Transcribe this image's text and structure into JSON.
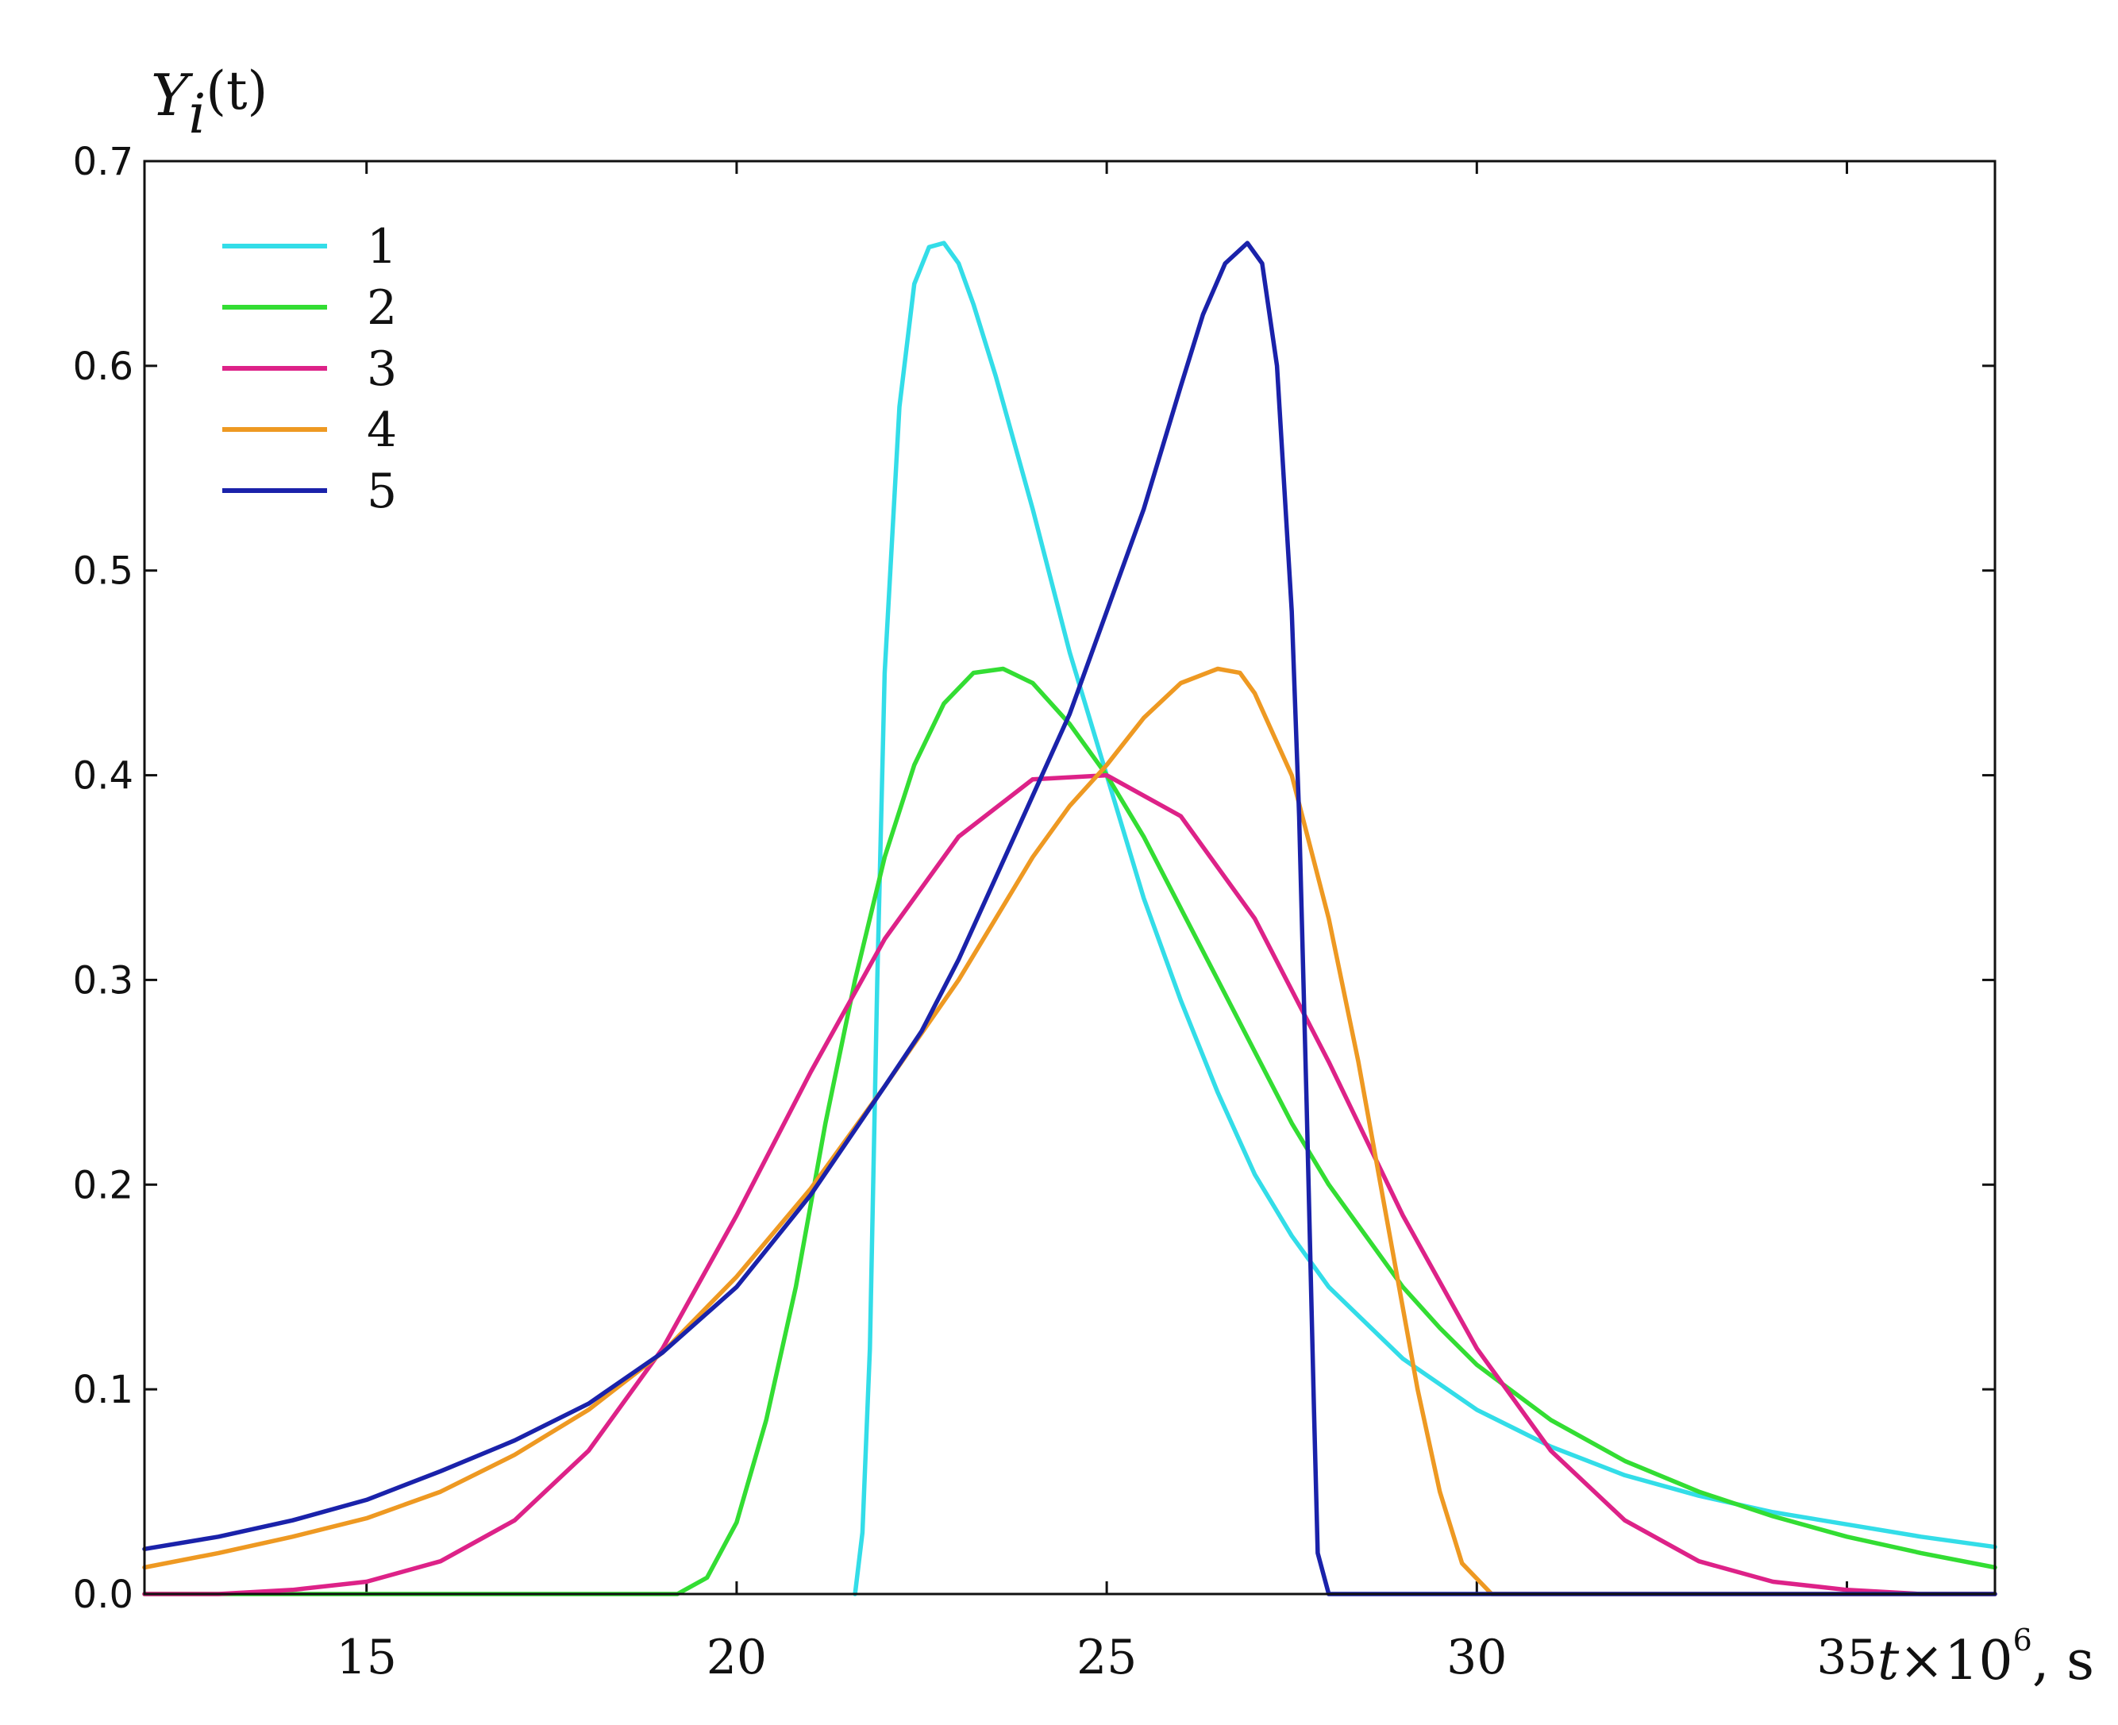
{
  "chart_data": {
    "type": "line",
    "ylabel": {
      "main": "Y",
      "sub": "i",
      "paren": "(t)"
    },
    "xlabel": {
      "var": "t",
      "mult": "×10",
      "exp": "6",
      "unit": ", s"
    },
    "xlim": [
      12,
      37
    ],
    "ylim": [
      0,
      0.7
    ],
    "x_ticks": [
      15,
      20,
      25,
      30,
      35
    ],
    "x_tick_labels": [
      "15",
      "20",
      "25",
      "30",
      "35"
    ],
    "y_ticks": [
      0.0,
      0.1,
      0.2,
      0.3,
      0.4,
      0.5,
      0.6,
      0.7
    ],
    "y_tick_labels": [
      "0.0",
      "0.1",
      "0.2",
      "0.3",
      "0.4",
      "0.5",
      "0.6",
      "0.7"
    ],
    "grid": false,
    "legend": {
      "position": "top-left"
    },
    "series": [
      {
        "name": "1",
        "color": "#33dde8",
        "x": [
          21.6,
          21.7,
          21.8,
          21.9,
          22.0,
          22.2,
          22.4,
          22.6,
          22.8,
          23.0,
          23.2,
          23.5,
          24.0,
          24.5,
          25.0,
          25.5,
          26.0,
          26.5,
          27.0,
          27.5,
          28.0,
          29.0,
          30.0,
          31.0,
          32.0,
          33.0,
          34.0,
          35.0,
          36.0,
          37.0
        ],
        "y": [
          0.0,
          0.03,
          0.12,
          0.3,
          0.45,
          0.58,
          0.64,
          0.658,
          0.66,
          0.65,
          0.63,
          0.595,
          0.53,
          0.46,
          0.4,
          0.34,
          0.29,
          0.245,
          0.205,
          0.175,
          0.15,
          0.115,
          0.09,
          0.072,
          0.058,
          0.048,
          0.04,
          0.034,
          0.028,
          0.023
        ]
      },
      {
        "name": "2",
        "color": "#33dd33",
        "x": [
          12,
          19.2,
          19.6,
          20.0,
          20.4,
          20.8,
          21.2,
          21.6,
          22.0,
          22.4,
          22.8,
          23.2,
          23.6,
          24.0,
          24.5,
          25.0,
          25.5,
          26.0,
          26.5,
          27.0,
          27.5,
          28.0,
          28.5,
          29.0,
          29.5,
          30.0,
          31.0,
          32.0,
          33.0,
          34.0,
          35.0,
          36.0,
          37.0
        ],
        "y": [
          0,
          0.0,
          0.008,
          0.035,
          0.085,
          0.15,
          0.23,
          0.3,
          0.36,
          0.405,
          0.435,
          0.45,
          0.452,
          0.445,
          0.425,
          0.4,
          0.37,
          0.335,
          0.3,
          0.265,
          0.23,
          0.2,
          0.175,
          0.15,
          0.13,
          0.112,
          0.085,
          0.065,
          0.05,
          0.038,
          0.028,
          0.02,
          0.013
        ]
      },
      {
        "name": "3",
        "color": "#dd2288",
        "x": [
          12,
          13,
          14,
          15,
          16,
          17,
          18,
          19,
          20,
          21,
          22,
          23,
          24,
          25,
          26,
          27,
          28,
          29,
          30,
          31,
          32,
          33,
          34,
          35,
          36,
          37
        ],
        "y": [
          0.0,
          0.0,
          0.002,
          0.006,
          0.016,
          0.036,
          0.07,
          0.12,
          0.185,
          0.255,
          0.32,
          0.37,
          0.398,
          0.4,
          0.38,
          0.33,
          0.26,
          0.185,
          0.12,
          0.07,
          0.036,
          0.016,
          0.006,
          0.002,
          0.0,
          0.0
        ]
      },
      {
        "name": "4",
        "color": "#ee9922",
        "x": [
          12,
          13,
          14,
          15,
          16,
          17,
          18,
          19,
          20,
          21,
          22,
          23,
          23.5,
          24,
          24.5,
          25,
          25.5,
          26,
          26.5,
          26.8,
          27,
          27.5,
          28,
          28.4,
          28.8,
          29.2,
          29.5,
          29.8,
          30.2,
          37
        ],
        "y": [
          0.013,
          0.02,
          0.028,
          0.037,
          0.05,
          0.068,
          0.09,
          0.118,
          0.155,
          0.198,
          0.248,
          0.3,
          0.33,
          0.36,
          0.385,
          0.405,
          0.428,
          0.445,
          0.452,
          0.45,
          0.44,
          0.4,
          0.33,
          0.26,
          0.18,
          0.1,
          0.05,
          0.015,
          0.0,
          0.0
        ]
      },
      {
        "name": "5",
        "color": "#1a22aa",
        "x": [
          12,
          13,
          14,
          15,
          16,
          17,
          18,
          19,
          20,
          21,
          22,
          22.5,
          23,
          23.5,
          24,
          24.5,
          25,
          25.5,
          26,
          26.3,
          26.6,
          26.9,
          27.1,
          27.3,
          27.5,
          27.6,
          27.7,
          27.8,
          27.85,
          28.0,
          37
        ],
        "y": [
          0.022,
          0.028,
          0.036,
          0.046,
          0.06,
          0.075,
          0.093,
          0.118,
          0.15,
          0.195,
          0.248,
          0.275,
          0.31,
          0.35,
          0.39,
          0.43,
          0.48,
          0.53,
          0.59,
          0.625,
          0.65,
          0.66,
          0.65,
          0.6,
          0.48,
          0.38,
          0.24,
          0.09,
          0.02,
          0.0,
          0.0
        ]
      }
    ]
  }
}
